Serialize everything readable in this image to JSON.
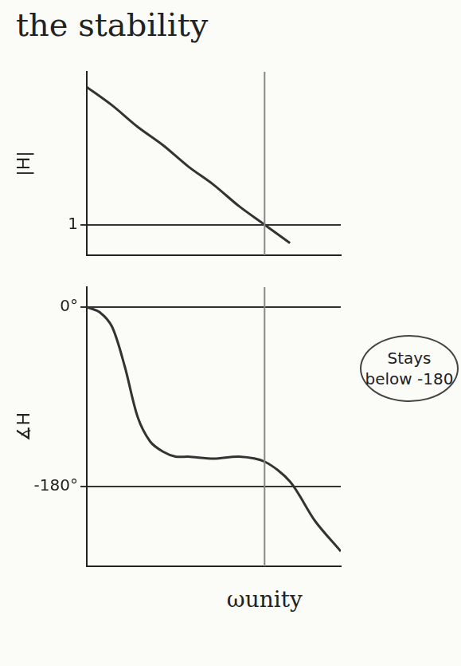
{
  "title": "the stability",
  "unity_frequency": {
    "label": "ωunity",
    "x": 7
  },
  "chart_data": [
    {
      "type": "line",
      "ylabel": "|H|",
      "color": "#333333",
      "x": [
        0,
        1,
        2,
        3,
        4,
        5,
        6,
        7,
        8
      ],
      "values": [
        5.5,
        4.9,
        4.2,
        3.6,
        2.9,
        2.3,
        1.6,
        1.0,
        0.4
      ],
      "xlim": [
        0,
        10
      ],
      "xticks": [],
      "ylim": [
        0,
        6
      ],
      "yticks": [
        1
      ],
      "tick_labels": "y",
      "grid": true
    },
    {
      "type": "line",
      "ylabel": "∡H",
      "color": "#333333",
      "x": [
        0,
        0.5,
        1,
        1.5,
        2,
        2.5,
        3,
        3.5,
        4,
        5,
        6,
        7,
        8,
        9,
        10
      ],
      "values": [
        0,
        -5,
        -20,
        -60,
        -110,
        -135,
        -145,
        -150,
        -150,
        -152,
        -150,
        -155,
        -175,
        -215,
        -245
      ],
      "xlim": [
        0,
        10
      ],
      "xticks": [],
      "ylim": [
        -260,
        20
      ],
      "yticks": [
        {
          "value": 0,
          "label": "0°"
        },
        {
          "value": -180,
          "label": "-180°"
        }
      ],
      "tick_labels": "y",
      "grid": true,
      "annotations": [
        {
          "text": "Stays below -180"
        }
      ]
    }
  ]
}
